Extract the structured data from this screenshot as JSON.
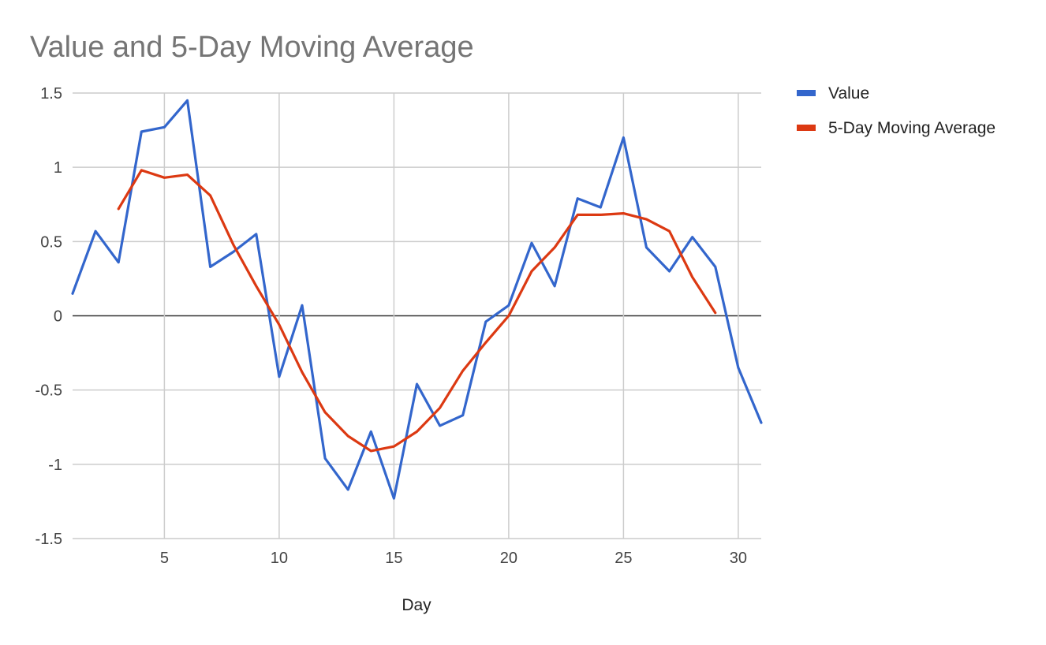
{
  "chart_data": {
    "type": "line",
    "title": "Value and 5-Day Moving Average",
    "xlabel": "Day",
    "ylabel": "",
    "xlim": [
      1,
      31
    ],
    "ylim": [
      -1.5,
      1.5
    ],
    "x_ticks": [
      5,
      10,
      15,
      20,
      25,
      30
    ],
    "y_ticks": [
      1.5,
      1,
      0.5,
      0,
      -0.5,
      -1,
      -1.5
    ],
    "x_tick_labels": [
      "5",
      "10",
      "15",
      "20",
      "25",
      "30"
    ],
    "y_tick_labels": [
      "1.5",
      "1",
      "0.5",
      "0",
      "-0.5",
      "-1",
      "-1.5"
    ],
    "grid": true,
    "legend_position": "right",
    "series": [
      {
        "name": "Value",
        "color": "#3366cc",
        "x": [
          1,
          2,
          3,
          4,
          5,
          6,
          7,
          8,
          9,
          10,
          11,
          12,
          13,
          14,
          15,
          16,
          17,
          18,
          19,
          20,
          21,
          22,
          23,
          24,
          25,
          26,
          27,
          28,
          29,
          30,
          31
        ],
        "values": [
          0.15,
          0.57,
          0.36,
          1.24,
          1.27,
          1.45,
          0.33,
          0.43,
          0.55,
          -0.41,
          0.07,
          -0.96,
          -1.17,
          -0.78,
          -1.23,
          -0.46,
          -0.74,
          -0.67,
          -0.04,
          0.07,
          0.49,
          0.2,
          0.79,
          0.73,
          1.2,
          0.46,
          0.3,
          0.53,
          0.33,
          -0.35,
          -0.72
        ]
      },
      {
        "name": "5-Day Moving Average",
        "color": "#dc3912",
        "x": [
          3,
          4,
          5,
          6,
          7,
          8,
          9,
          10,
          11,
          12,
          13,
          14,
          15,
          16,
          17,
          18,
          19,
          20,
          21,
          22,
          23,
          24,
          25,
          26,
          27,
          28,
          29
        ],
        "values": [
          0.72,
          0.98,
          0.93,
          0.95,
          0.81,
          0.48,
          0.2,
          -0.06,
          -0.38,
          -0.65,
          -0.81,
          -0.91,
          -0.88,
          -0.78,
          -0.62,
          -0.37,
          -0.18,
          0.0,
          0.3,
          0.46,
          0.68,
          0.68,
          0.69,
          0.65,
          0.57,
          0.26,
          0.02
        ]
      }
    ]
  }
}
